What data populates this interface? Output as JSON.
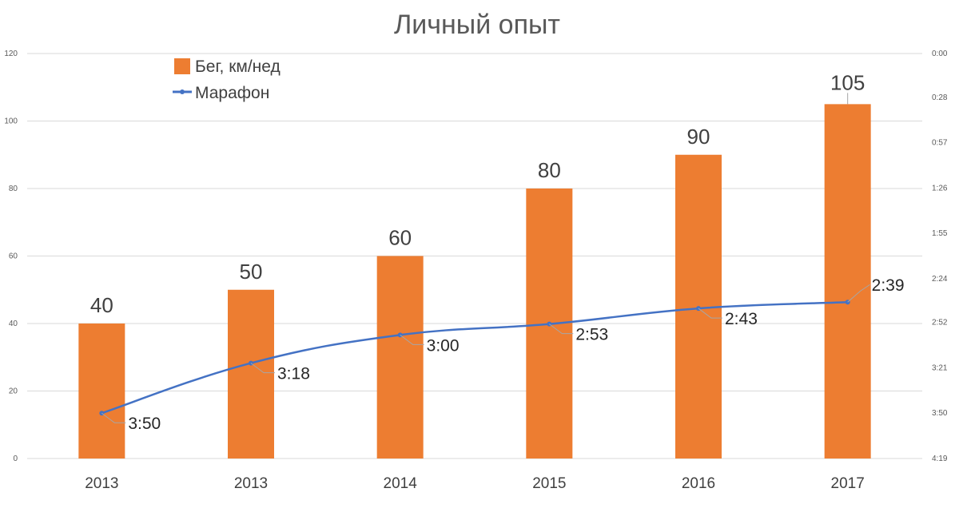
{
  "chart_data": {
    "type": "bar",
    "title": "Личный опыт",
    "categories": [
      "2013",
      "2013",
      "2014",
      "2015",
      "2016",
      "2017"
    ],
    "series": [
      {
        "name": "Бег, км/нед",
        "kind": "bar",
        "axis": "left",
        "color": "#ED7D31",
        "values": [
          40,
          50,
          60,
          80,
          90,
          105
        ],
        "data_labels": [
          "40",
          "50",
          "60",
          "80",
          "90",
          "105"
        ]
      },
      {
        "name": "Марафон",
        "kind": "line",
        "axis": "right",
        "color": "#4472C4",
        "values": [
          "3:50",
          "3:18",
          "3:00",
          "2:53",
          "2:43",
          "2:39"
        ],
        "data_labels": [
          "3:50",
          "3:18",
          "3:00",
          "2:53",
          "2:43",
          "2:39"
        ]
      }
    ],
    "y_left": {
      "ylim": [
        0,
        120
      ],
      "ticks": [
        "0",
        "20",
        "40",
        "60",
        "80",
        "100",
        "120"
      ]
    },
    "y_right": {
      "reversed": true,
      "ylim": [
        "0:00",
        "4:19"
      ],
      "ticks": [
        "4:19",
        "3:50",
        "3:21",
        "2:52",
        "2:24",
        "1:55",
        "1:26",
        "0:57",
        "0:28",
        "0:00"
      ]
    },
    "grid": true,
    "legend_position": "top-left"
  }
}
